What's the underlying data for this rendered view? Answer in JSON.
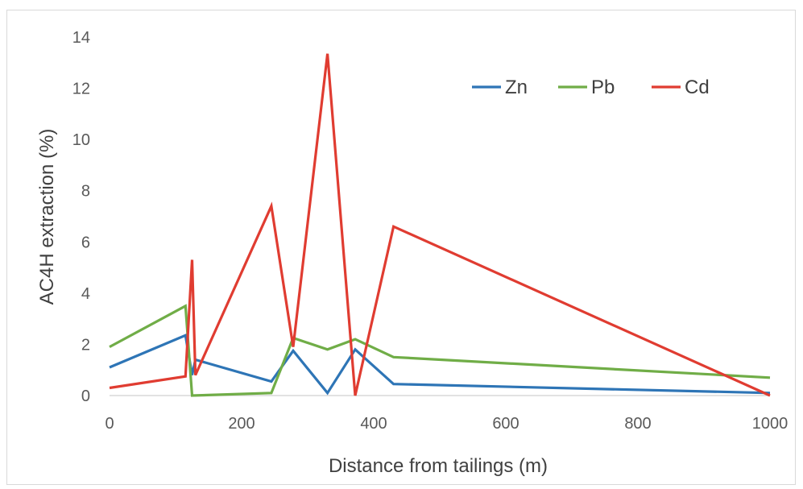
{
  "chart_data": {
    "type": "line",
    "title": "",
    "xlabel": "Distance from tailings (m)",
    "ylabel": "AC4H extraction (%)",
    "xlim": [
      0,
      1000
    ],
    "ylim": [
      0,
      14
    ],
    "xticks": [
      0,
      200,
      400,
      600,
      800,
      1000
    ],
    "yticks": [
      0,
      2,
      4,
      6,
      8,
      10,
      12,
      14
    ],
    "grid": false,
    "legend_position": "top-right",
    "series": [
      {
        "name": "Zn",
        "color": "#2e75b6",
        "points": [
          [
            0,
            1.1
          ],
          [
            115,
            2.35
          ],
          [
            125,
            0.8
          ],
          [
            130,
            1.4
          ],
          [
            245,
            0.55
          ],
          [
            278,
            1.75
          ],
          [
            330,
            0.1
          ],
          [
            372,
            1.8
          ],
          [
            430,
            0.45
          ],
          [
            1000,
            0.1
          ]
        ]
      },
      {
        "name": "Pb",
        "color": "#70ad47",
        "points": [
          [
            0,
            1.9
          ],
          [
            115,
            3.5
          ],
          [
            125,
            0.0
          ],
          [
            245,
            0.1
          ],
          [
            278,
            2.25
          ],
          [
            330,
            1.8
          ],
          [
            372,
            2.2
          ],
          [
            430,
            1.5
          ],
          [
            1000,
            0.7
          ]
        ]
      },
      {
        "name": "Cd",
        "color": "#e03c31",
        "points": [
          [
            0,
            0.3
          ],
          [
            115,
            0.75
          ],
          [
            125,
            5.3
          ],
          [
            130,
            0.8
          ],
          [
            245,
            7.4
          ],
          [
            278,
            1.9
          ],
          [
            330,
            13.35
          ],
          [
            372,
            0.0
          ],
          [
            430,
            6.6
          ],
          [
            1000,
            0.0
          ]
        ]
      }
    ]
  }
}
